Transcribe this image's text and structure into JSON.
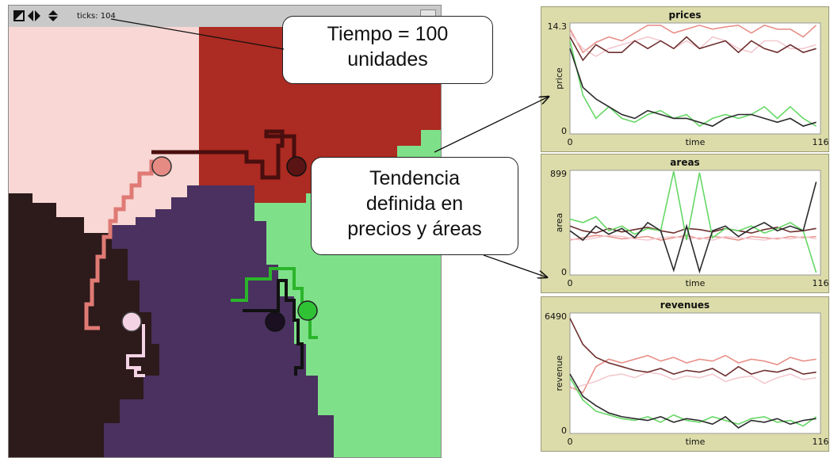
{
  "view": {
    "ticks_label": "ticks: 104",
    "controls": [
      "resize-icon",
      "horizontal-arrows-icon",
      "vertical-arrows-icon"
    ],
    "colors": {
      "pink_region": "#f8d7d4",
      "red_region": "#ac2b22",
      "darkbrown_region": "#2d1a1b",
      "purple_region": "#4a3160",
      "green_region": "#7fe08a"
    }
  },
  "callouts": {
    "time": [
      "Tiempo = 100",
      "unidades"
    ],
    "trend": [
      "Tendencia",
      "definida en",
      "precios y áreas"
    ]
  },
  "plots": [
    {
      "key": "prices",
      "title": "prices",
      "ylabel": "price",
      "xlabel": "time",
      "ymax_label": "14.3",
      "ymin_label": "0",
      "xmin_label": "0",
      "xmax_label": "116",
      "chart_data": {
        "type": "line",
        "title": "prices",
        "xlabel": "time",
        "ylabel": "price",
        "xlim": [
          0,
          116
        ],
        "ylim": [
          0,
          14.3
        ],
        "x": [
          0,
          6,
          12,
          18,
          24,
          30,
          36,
          42,
          48,
          54,
          60,
          66,
          72,
          78,
          84,
          90,
          96,
          102,
          108,
          114
        ],
        "series": [
          {
            "color": "#e8918a",
            "values": [
              13.5,
              10.5,
              11.8,
              12.5,
              12.0,
              13.0,
              14.0,
              14.0,
              13.0,
              13.5,
              14.0,
              13.5,
              13.8,
              14.0,
              13.0,
              14.0,
              13.5,
              13.5,
              12.5,
              14.0
            ]
          },
          {
            "color": "#f3c9d0",
            "values": [
              13.0,
              11.0,
              10.0,
              11.0,
              11.5,
              12.0,
              12.5,
              12.0,
              11.0,
              12.0,
              11.0,
              12.5,
              12.0,
              11.0,
              10.5,
              12.0,
              12.0,
              11.0,
              11.0,
              11.5
            ]
          },
          {
            "color": "#6e2f2f",
            "values": [
              12.5,
              9.5,
              11.5,
              10.5,
              10.5,
              12.0,
              11.0,
              12.0,
              11.0,
              12.5,
              11.0,
              11.5,
              12.0,
              10.5,
              12.0,
              11.0,
              10.5,
              11.5,
              10.5,
              11.0
            ]
          },
          {
            "color": "#66d866",
            "values": [
              12.0,
              5.0,
              2.0,
              3.5,
              2.0,
              1.5,
              2.5,
              3.0,
              2.0,
              2.5,
              1.0,
              2.0,
              2.5,
              2.0,
              2.5,
              3.5,
              2.0,
              3.5,
              2.0,
              1.0
            ]
          },
          {
            "color": "#2a2a2a",
            "values": [
              11.0,
              6.0,
              4.5,
              3.5,
              2.5,
              2.0,
              3.0,
              2.5,
              2.0,
              2.0,
              1.5,
              1.0,
              2.0,
              2.5,
              2.5,
              2.0,
              1.5,
              2.0,
              1.0,
              1.5
            ]
          }
        ]
      }
    },
    {
      "key": "areas",
      "title": "areas",
      "ylabel": "area",
      "xlabel": "time",
      "ymax_label": "899",
      "ymin_label": "0",
      "xmin_label": "0",
      "xmax_label": "116",
      "chart_data": {
        "type": "line",
        "title": "areas",
        "xlabel": "time",
        "ylabel": "area",
        "xlim": [
          0,
          116
        ],
        "ylim": [
          0,
          899
        ],
        "x": [
          0,
          6,
          12,
          18,
          24,
          30,
          36,
          42,
          48,
          54,
          60,
          66,
          72,
          78,
          84,
          90,
          96,
          102,
          108,
          114
        ],
        "series": [
          {
            "color": "#e8918a",
            "values": [
              300,
              320,
              340,
              330,
              310,
              320,
              330,
              300,
              320,
              340,
              310,
              330,
              320,
              300,
              330,
              320,
              310,
              330,
              320,
              330
            ]
          },
          {
            "color": "#f3c9d0",
            "values": [
              310,
              300,
              320,
              340,
              330,
              310,
              300,
              320,
              330,
              310,
              320,
              300,
              330,
              320,
              310,
              300,
              320,
              310,
              330,
              310
            ]
          },
          {
            "color": "#6e2f2f",
            "values": [
              420,
              380,
              360,
              400,
              370,
              390,
              410,
              380,
              360,
              400,
              390,
              370,
              400,
              380,
              360,
              390,
              410,
              370,
              380,
              400
            ]
          },
          {
            "color": "#66d866",
            "values": [
              480,
              450,
              500,
              380,
              420,
              350,
              400,
              380,
              890,
              300,
              880,
              320,
              400,
              380,
              420,
              360,
              400,
              450,
              380,
              20
            ]
          },
          {
            "color": "#2a2a2a",
            "values": [
              380,
              300,
              420,
              350,
              400,
              320,
              450,
              380,
              40,
              420,
              30,
              380,
              420,
              330,
              400,
              450,
              380,
              420,
              380,
              800
            ]
          }
        ]
      }
    },
    {
      "key": "revenues",
      "title": "revenues",
      "ylabel": "revenue",
      "xlabel": "time",
      "ymax_label": "6490",
      "ymin_label": "0",
      "xmin_label": "0",
      "xmax_label": "116",
      "chart_data": {
        "type": "line",
        "title": "revenues",
        "xlabel": "time",
        "ylabel": "revenue",
        "xlim": [
          0,
          116
        ],
        "ylim": [
          0,
          6490
        ],
        "x": [
          0,
          6,
          12,
          18,
          24,
          30,
          36,
          42,
          48,
          54,
          60,
          66,
          72,
          78,
          84,
          90,
          96,
          102,
          108,
          114
        ],
        "series": [
          {
            "color": "#e8918a",
            "values": [
              2500,
              2200,
              3600,
              4000,
              3800,
              4000,
              4200,
              3900,
              4100,
              3800,
              4000,
              3900,
              4200,
              3800,
              4000,
              3900,
              3700,
              4100,
              3900,
              4000
            ]
          },
          {
            "color": "#f3c9d0",
            "values": [
              2400,
              2600,
              2800,
              3100,
              3200,
              3000,
              3300,
              3200,
              2900,
              3100,
              3000,
              3200,
              2800,
              3000,
              3100,
              2700,
              3000,
              3200,
              2900,
              3000
            ]
          },
          {
            "color": "#6e2f2f",
            "values": [
              6200,
              4800,
              4100,
              3800,
              3600,
              3400,
              3300,
              3500,
              3200,
              3400,
              3300,
              3500,
              3100,
              3600,
              3200,
              3400,
              3300,
              3500,
              3200,
              3300
            ]
          },
          {
            "color": "#66d866",
            "values": [
              3000,
              1800,
              1200,
              1000,
              800,
              700,
              900,
              600,
              1000,
              700,
              600,
              900,
              700,
              500,
              800,
              900,
              600,
              700,
              400,
              900
            ]
          },
          {
            "color": "#2a2a2a",
            "values": [
              3200,
              2000,
              1500,
              1100,
              900,
              800,
              700,
              900,
              600,
              800,
              700,
              500,
              900,
              300,
              700,
              600,
              800,
              500,
              700,
              800
            ]
          }
        ]
      }
    }
  ]
}
